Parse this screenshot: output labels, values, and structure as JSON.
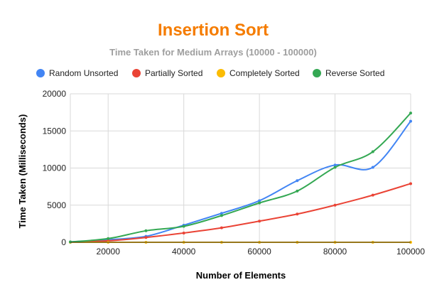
{
  "chart_data": {
    "type": "line",
    "title": "Insertion Sort",
    "subtitle": "Time Taken for Medium Arrays (10000 - 100000)",
    "xlabel": "Number of Elements",
    "ylabel": "Time Taken (Milliseconds)",
    "xlim": [
      10000,
      100000
    ],
    "ylim": [
      0,
      20000
    ],
    "x_ticks": [
      20000,
      40000,
      60000,
      80000,
      100000
    ],
    "y_ticks": [
      0,
      5000,
      10000,
      15000,
      20000
    ],
    "grid": true,
    "legend_position": "top",
    "title_color": "#f57c00",
    "x": [
      10000,
      20000,
      30000,
      40000,
      50000,
      60000,
      70000,
      80000,
      90000,
      100000
    ],
    "series": [
      {
        "name": "Random Unsorted",
        "color": "#4285f4",
        "values": [
          50,
          350,
          800,
          2300,
          3900,
          5600,
          8300,
          10400,
          10100,
          16300
        ]
      },
      {
        "name": "Partially Sorted",
        "color": "#ea4335",
        "values": [
          20,
          200,
          650,
          1250,
          1950,
          2850,
          3800,
          5000,
          6350,
          7900
        ]
      },
      {
        "name": "Completely Sorted",
        "color": "#fbbc04",
        "values": [
          0,
          0,
          0,
          0,
          0,
          0,
          0,
          0,
          0,
          0
        ]
      },
      {
        "name": "Reverse Sorted",
        "color": "#34a853",
        "values": [
          50,
          500,
          1550,
          2150,
          3600,
          5300,
          6900,
          10100,
          12200,
          17400
        ]
      }
    ]
  }
}
